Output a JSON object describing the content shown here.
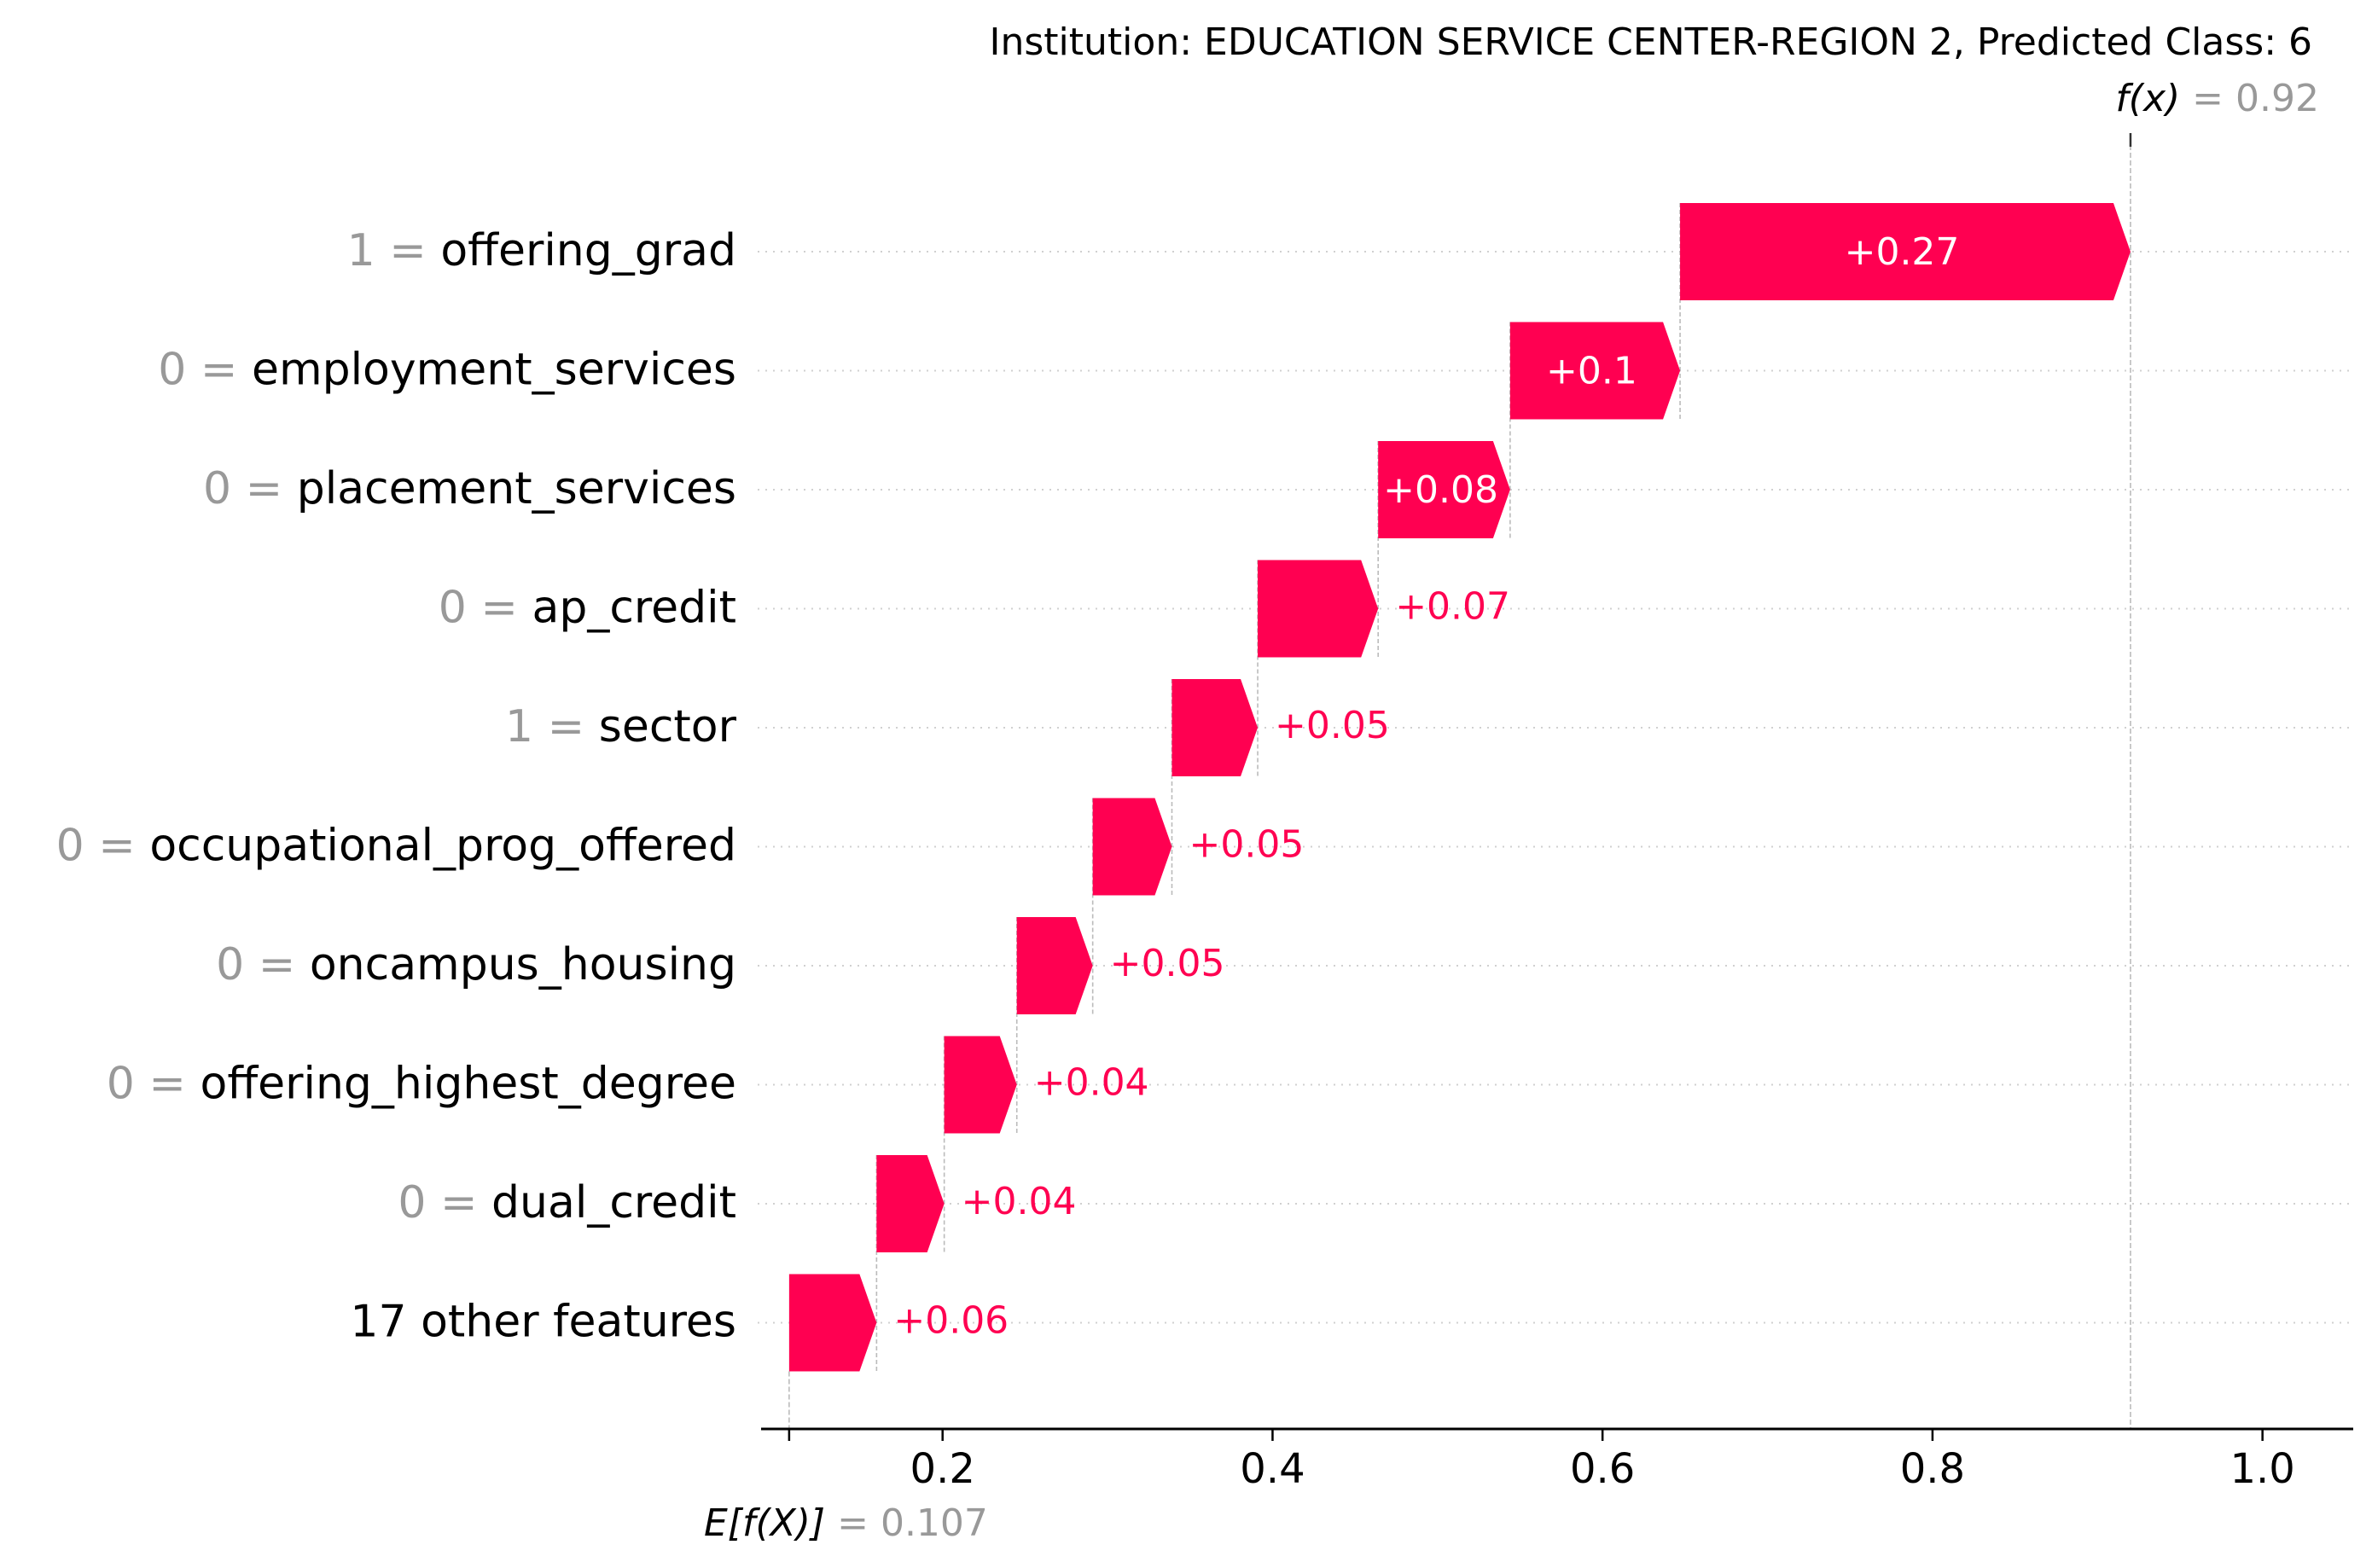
{
  "chart_data": {
    "type": "waterfall",
    "title": "Institution: EDUCATION SERVICE CENTER-REGION 2, Predicted Class: 6",
    "base_value": 0.107,
    "base_label_prefix": "E[f(X)]",
    "base_label_value": "= 0.107",
    "output_value": 0.92,
    "output_label_prefix": "f(x)",
    "output_label_value": "= 0.92",
    "xlim": [
      0.09,
      1.055
    ],
    "xticks": [
      0.2,
      0.4,
      0.6,
      0.8,
      1.0
    ],
    "xtick_labels": [
      "0.2",
      "0.4",
      "0.6",
      "0.8",
      "1.0"
    ],
    "positive_color": "#ff0051",
    "feature_value_color": "#999999",
    "label_inside_color": "#ffffff",
    "features": [
      {
        "value": "1 =",
        "name": "offering_grad",
        "start": 0.647,
        "end": 0.92,
        "label": "+0.27",
        "label_inside": true
      },
      {
        "value": "0 =",
        "name": "employment_services",
        "start": 0.544,
        "end": 0.647,
        "label": "+0.1",
        "label_inside": true
      },
      {
        "value": "0 =",
        "name": "placement_services",
        "start": 0.464,
        "end": 0.544,
        "label": "+0.08",
        "label_inside": true
      },
      {
        "value": "0 =",
        "name": "ap_credit",
        "start": 0.391,
        "end": 0.464,
        "label": "+0.07",
        "label_inside": false
      },
      {
        "value": "1 =",
        "name": "sector",
        "start": 0.339,
        "end": 0.391,
        "label": "+0.05",
        "label_inside": false
      },
      {
        "value": "0 =",
        "name": "occupational_prog_offered",
        "start": 0.291,
        "end": 0.339,
        "label": "+0.05",
        "label_inside": false
      },
      {
        "value": "0 =",
        "name": "oncampus_housing",
        "start": 0.245,
        "end": 0.291,
        "label": "+0.05",
        "label_inside": false
      },
      {
        "value": "0 =",
        "name": "offering_highest_degree",
        "start": 0.201,
        "end": 0.245,
        "label": "+0.04",
        "label_inside": false
      },
      {
        "value": "0 =",
        "name": "dual_credit",
        "start": 0.16,
        "end": 0.201,
        "label": "+0.04",
        "label_inside": false
      },
      {
        "value": "",
        "name": "17 other features",
        "start": 0.107,
        "end": 0.16,
        "label": "+0.06",
        "label_inside": false
      }
    ]
  }
}
